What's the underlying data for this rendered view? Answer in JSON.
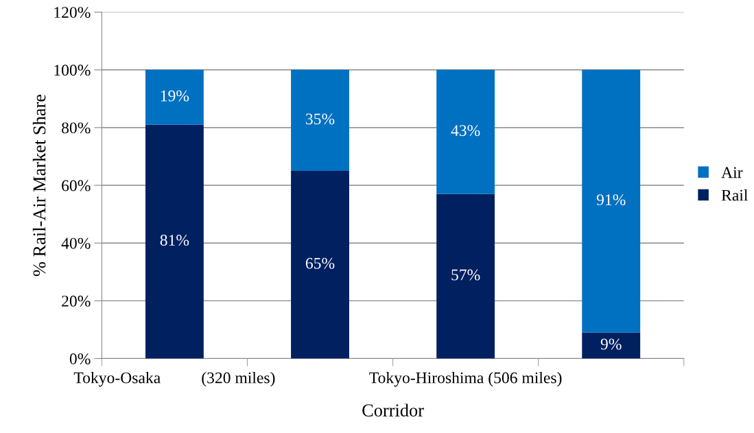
{
  "chart_data": {
    "type": "bar",
    "stacked": true,
    "xlabel": "Corridor",
    "ylabel": "% Rail-Air Market Share",
    "categories": [
      "Tokyo-Osaka          (320 miles)",
      null,
      "Tokyo-Hiroshima (506 miles)",
      null
    ],
    "series": [
      {
        "name": "Rail",
        "color": "#002060",
        "values": [
          81,
          65,
          57,
          9
        ],
        "value_labels": [
          "81%",
          "65%",
          "57%",
          "9%"
        ]
      },
      {
        "name": "Air",
        "color": "#0070c0",
        "values": [
          19,
          35,
          43,
          91
        ],
        "value_labels": [
          "19%",
          "35%",
          "43%",
          "91%"
        ]
      }
    ],
    "ylim": [
      0,
      120
    ],
    "yticks": [
      {
        "value": 0,
        "label": "0%"
      },
      {
        "value": 20,
        "label": "20%"
      },
      {
        "value": 40,
        "label": "40%"
      },
      {
        "value": 60,
        "label": "60%"
      },
      {
        "value": 80,
        "label": "80%"
      },
      {
        "value": 100,
        "label": "100%"
      },
      {
        "value": 120,
        "label": "120%"
      }
    ],
    "grid": "y",
    "legend": "right"
  }
}
